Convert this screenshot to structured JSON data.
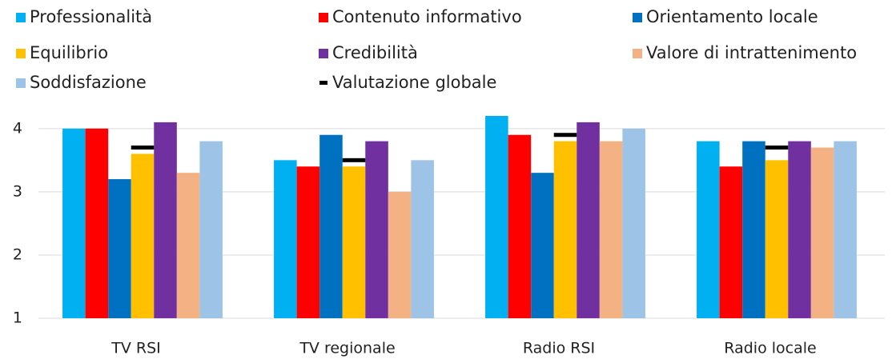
{
  "chart_data": {
    "type": "bar",
    "categories": [
      "TV RSI",
      "TV regionale",
      "Radio RSI",
      "Radio locale"
    ],
    "series": [
      {
        "name": "Professionalità",
        "color": "#00b0f0",
        "values": [
          4.0,
          3.5,
          4.2,
          3.8
        ]
      },
      {
        "name": "Contenuto informativo",
        "color": "#ff0000",
        "values": [
          4.0,
          3.4,
          3.9,
          3.4
        ]
      },
      {
        "name": "Orientamento locale",
        "color": "#0070c0",
        "values": [
          3.2,
          3.9,
          3.3,
          3.8
        ]
      },
      {
        "name": "Equilibrio",
        "color": "#ffc000",
        "values": [
          3.6,
          3.4,
          3.8,
          3.5
        ]
      },
      {
        "name": "Credibilità",
        "color": "#7030a0",
        "values": [
          4.1,
          3.8,
          4.1,
          3.8
        ]
      },
      {
        "name": "Valore di intrattenimento",
        "color": "#f4b183",
        "values": [
          3.3,
          3.0,
          3.8,
          3.7
        ]
      },
      {
        "name": "Soddisfazione",
        "color": "#9dc3e6",
        "values": [
          3.8,
          3.5,
          4.0,
          3.8
        ]
      },
      {
        "name": "Valutazione globale",
        "color": "#000000",
        "marker": "dash",
        "values": [
          3.7,
          3.5,
          3.9,
          3.7
        ]
      }
    ],
    "ylim": [
      1,
      4.2
    ],
    "yticks": [
      1,
      2,
      3,
      4
    ],
    "grid": true
  }
}
